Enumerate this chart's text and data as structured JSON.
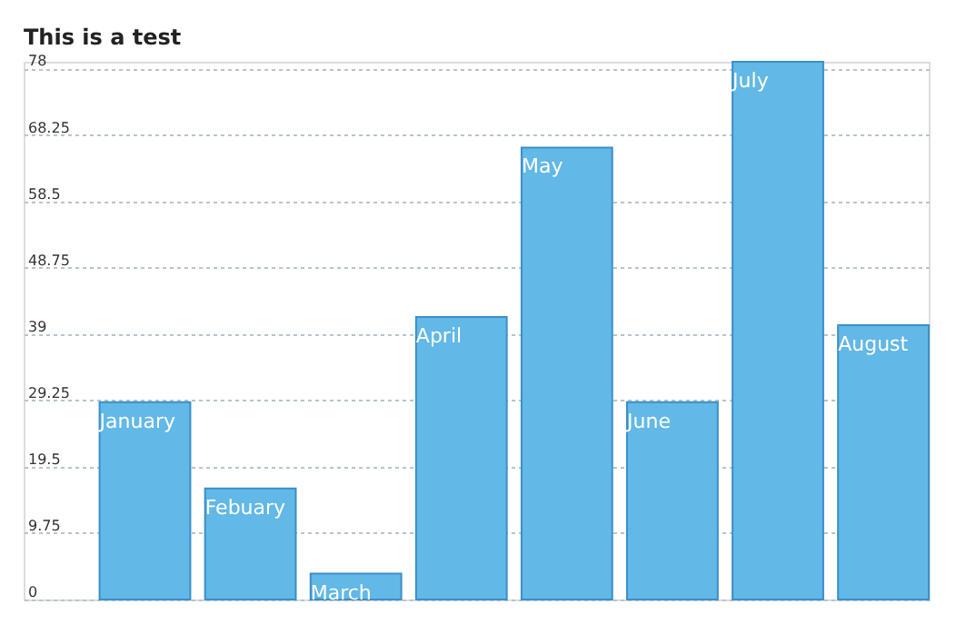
{
  "chart_data": {
    "type": "bar",
    "title": "This is a test",
    "categories": [
      "January",
      "Febuary",
      "March",
      "April",
      "May",
      "June",
      "July",
      "August"
    ],
    "values": [
      29,
      16.3,
      3.8,
      41.5,
      66.4,
      29,
      79,
      40.3
    ],
    "color": "#62b8e6",
    "ylim": [
      0,
      79
    ],
    "yticks": [
      0,
      9.75,
      19.5,
      29.25,
      39,
      48.75,
      58.5,
      68.25,
      78
    ],
    "grid": "y",
    "tick_labels": "y"
  }
}
